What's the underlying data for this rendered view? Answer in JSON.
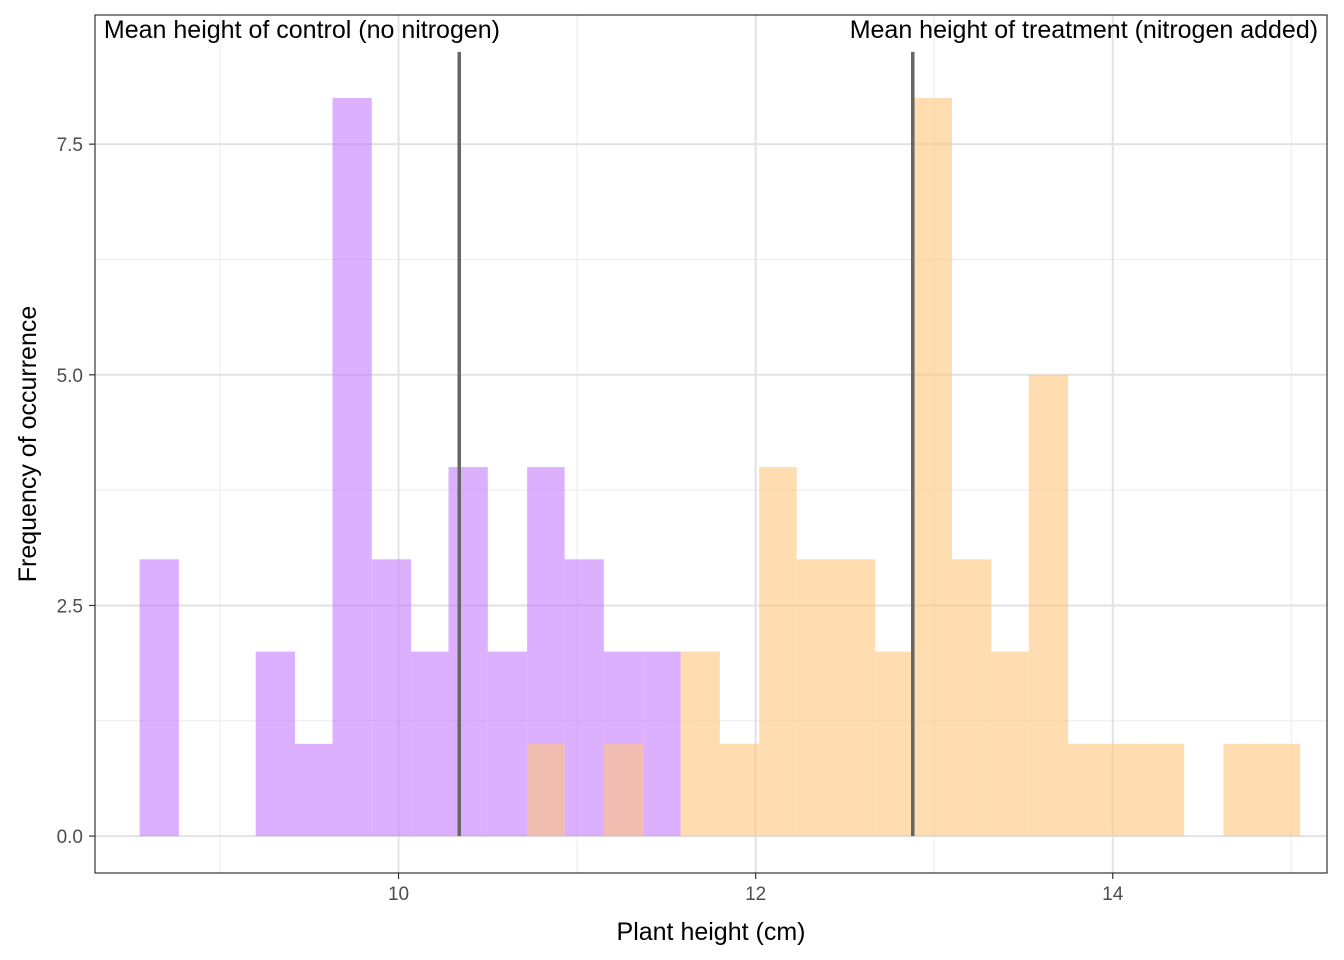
{
  "chart_data": {
    "type": "histogram",
    "xlabel": "Plant height (cm)",
    "ylabel": "Frequency of occurrence",
    "xlim": [
      8.3,
      15.2
    ],
    "ylim": [
      -0.4,
      8.9
    ],
    "x_ticks": [
      10,
      12,
      14
    ],
    "y_ticks": [
      0.0,
      2.5,
      5.0,
      7.5
    ],
    "x_tick_labels": [
      "10",
      "12",
      "14"
    ],
    "y_tick_labels": [
      "0.0",
      "2.5",
      "5.0",
      "7.5"
    ],
    "grid": true,
    "bin_width": 0.2163,
    "series": [
      {
        "color": "#c77cff",
        "opacity": 0.6,
        "bins": [
          {
            "x0": 8.55,
            "x1": 8.77,
            "count": 3
          },
          {
            "x0": 9.2,
            "x1": 9.42,
            "count": 2
          },
          {
            "x0": 9.42,
            "x1": 9.63,
            "count": 1
          },
          {
            "x0": 9.63,
            "x1": 9.85,
            "count": 8
          },
          {
            "x0": 9.85,
            "x1": 10.07,
            "count": 3
          },
          {
            "x0": 10.07,
            "x1": 10.28,
            "count": 2
          },
          {
            "x0": 10.28,
            "x1": 10.5,
            "count": 4
          },
          {
            "x0": 10.5,
            "x1": 10.72,
            "count": 2
          },
          {
            "x0": 10.72,
            "x1": 10.93,
            "count": 4
          },
          {
            "x0": 10.93,
            "x1": 11.15,
            "count": 3
          },
          {
            "x0": 11.15,
            "x1": 11.37,
            "count": 2
          },
          {
            "x0": 11.37,
            "x1": 11.58,
            "count": 2
          }
        ]
      },
      {
        "color": "#ffc67d",
        "opacity": 0.6,
        "bins": [
          {
            "x0": 10.72,
            "x1": 10.93,
            "count": 1
          },
          {
            "x0": 11.15,
            "x1": 11.37,
            "count": 1
          },
          {
            "x0": 11.58,
            "x1": 11.8,
            "count": 2
          },
          {
            "x0": 11.8,
            "x1": 12.02,
            "count": 1
          },
          {
            "x0": 12.02,
            "x1": 12.23,
            "count": 4
          },
          {
            "x0": 12.23,
            "x1": 12.45,
            "count": 3
          },
          {
            "x0": 12.45,
            "x1": 12.67,
            "count": 3
          },
          {
            "x0": 12.67,
            "x1": 12.88,
            "count": 2
          },
          {
            "x0": 12.88,
            "x1": 13.1,
            "count": 8
          },
          {
            "x0": 13.1,
            "x1": 13.32,
            "count": 3
          },
          {
            "x0": 13.32,
            "x1": 13.53,
            "count": 2
          },
          {
            "x0": 13.53,
            "x1": 13.75,
            "count": 5
          },
          {
            "x0": 13.75,
            "x1": 13.97,
            "count": 1
          },
          {
            "x0": 13.97,
            "x1": 14.18,
            "count": 1
          },
          {
            "x0": 14.18,
            "x1": 14.4,
            "count": 1
          },
          {
            "x0": 14.62,
            "x1": 14.83,
            "count": 1
          },
          {
            "x0": 14.83,
            "x1": 15.05,
            "count": 1
          }
        ]
      }
    ],
    "mean_lines": [
      {
        "x": 10.34,
        "y_top": 8.5
      },
      {
        "x": 12.88,
        "y_top": 8.5
      }
    ],
    "mean_line_color": "#666666",
    "annotations": [
      {
        "text": "Mean height of control (no nitrogen)",
        "x": 8.35,
        "y": 8.75,
        "anchor": "start"
      },
      {
        "text": "Mean height of treatment (nitrogen added)",
        "x": 15.15,
        "y": 8.75,
        "anchor": "end"
      }
    ]
  }
}
